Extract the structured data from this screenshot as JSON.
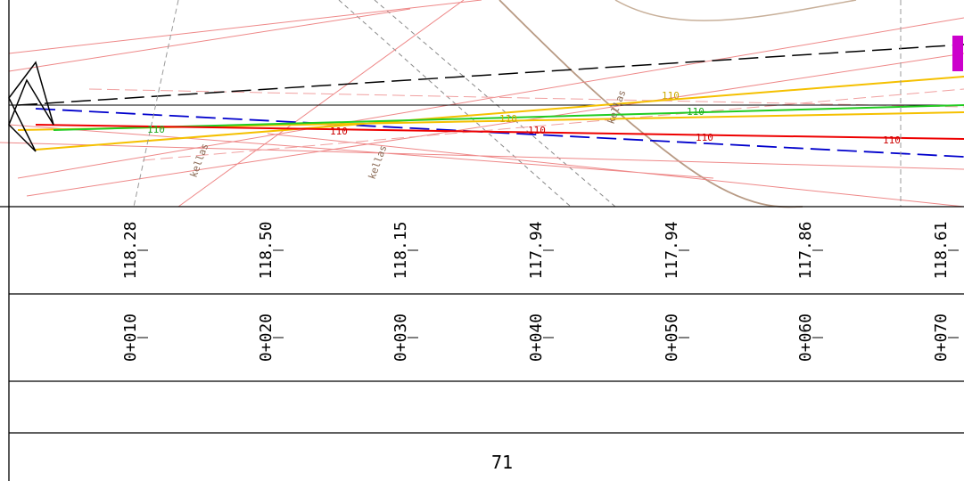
{
  "profile": {
    "elevations": [
      "118.28",
      "118.50",
      "118.15",
      "117.94",
      "117.94",
      "117.86",
      "118.61"
    ],
    "stations": [
      "0+010",
      "0+020",
      "0+030",
      "0+040",
      "0+050",
      "0+060",
      "0+070"
    ],
    "page_number": "71"
  },
  "plan": {
    "labels": [
      "110",
      "110",
      "110",
      "110",
      "110",
      "110",
      "110",
      "110",
      "kellas",
      "kellas",
      "kellas"
    ]
  }
}
